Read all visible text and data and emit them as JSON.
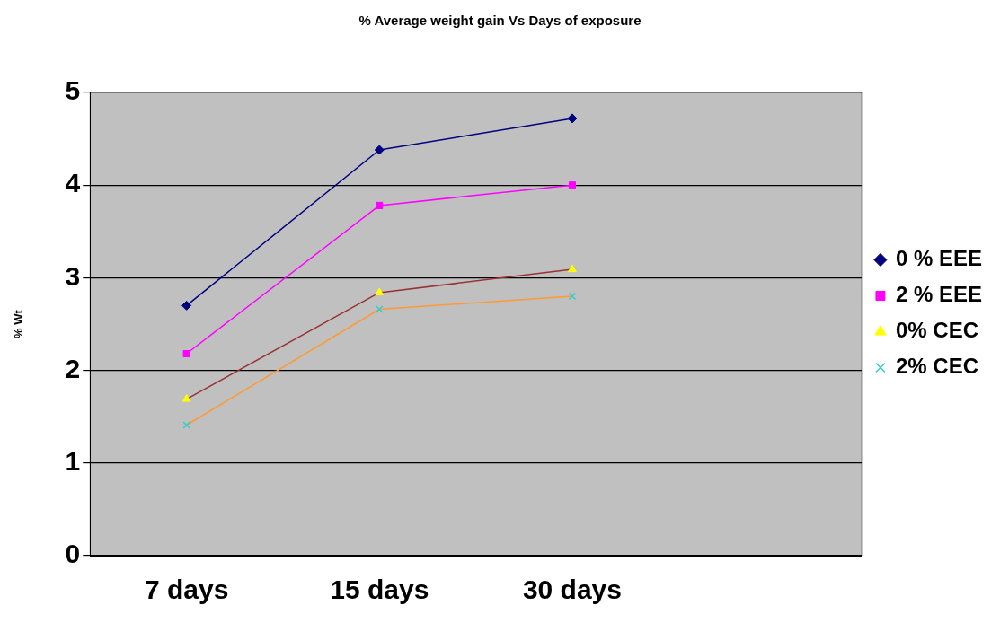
{
  "chart_data": {
    "type": "line",
    "title": "% Average weight gain Vs Days of exposure",
    "ylabel": "% Wt",
    "categories": [
      "7 days",
      "15 days",
      "30 days",
      null
    ],
    "series": [
      {
        "name": "0 % EEE",
        "color": "#000080",
        "colors": [
          "#000080",
          "#000080",
          "#000080",
          null
        ],
        "marker": "diamond",
        "values": [
          2.7,
          4.38,
          4.72,
          null
        ]
      },
      {
        "name": "2 % EEE",
        "color": "#ff00ff",
        "colors": [
          "#ff00ff",
          "#ff00ff",
          "#ff00ff",
          null
        ],
        "marker": "square",
        "values": [
          2.18,
          3.78,
          4.0,
          null
        ]
      },
      {
        "name": "0% CEC",
        "color": "#993333",
        "colors": [
          "#ffff00",
          "#ffff00",
          "#ffff00",
          null
        ],
        "marker": "triangle",
        "values": [
          1.69,
          2.84,
          3.09,
          null
        ]
      },
      {
        "name": "2% CEC",
        "color": "#ff9933",
        "colors": [
          "#33cccc",
          "#33cccc",
          "#33cccc",
          null
        ],
        "marker": "cross",
        "values": [
          1.41,
          2.66,
          2.8,
          null
        ]
      }
    ],
    "ylim": [
      0,
      5
    ],
    "yticks": [
      0,
      1,
      2,
      3,
      4,
      5
    ],
    "grid": "y",
    "legend": "right"
  }
}
